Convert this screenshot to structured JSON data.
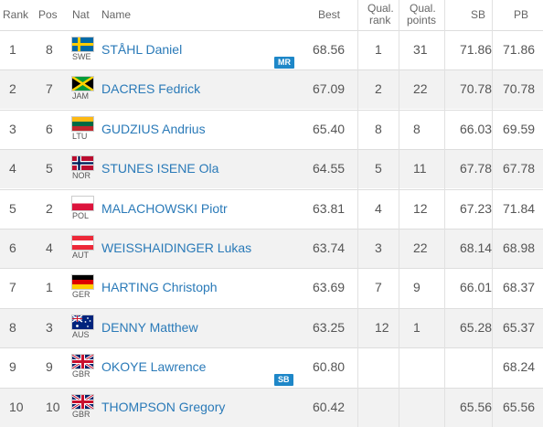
{
  "headers": {
    "rank": "Rank",
    "pos": "Pos",
    "nat": "Nat",
    "name": "Name",
    "best": "Best",
    "qual_rank_1": "Qual.",
    "qual_rank_2": "rank",
    "qual_points_1": "Qual.",
    "qual_points_2": "points",
    "sb": "SB",
    "pb": "PB"
  },
  "rows": [
    {
      "rank": "1",
      "pos": "8",
      "nat": "SWE",
      "flag": "swe-flag-icon",
      "name": "STÅHL Daniel",
      "best": "68.56",
      "qrank": "1",
      "qpts": "31",
      "sb": "71.86",
      "pb": "71.86",
      "badge": "MR"
    },
    {
      "rank": "2",
      "pos": "7",
      "nat": "JAM",
      "flag": "jam-flag-icon",
      "name": "DACRES Fedrick",
      "best": "67.09",
      "qrank": "2",
      "qpts": "22",
      "sb": "70.78",
      "pb": "70.78",
      "badge": ""
    },
    {
      "rank": "3",
      "pos": "6",
      "nat": "LTU",
      "flag": "ltu-flag-icon",
      "name": "GUDZIUS Andrius",
      "best": "65.40",
      "qrank": "8",
      "qpts": "8",
      "sb": "66.03",
      "pb": "69.59",
      "badge": ""
    },
    {
      "rank": "4",
      "pos": "5",
      "nat": "NOR",
      "flag": "nor-flag-icon",
      "name": "STUNES ISENE Ola",
      "best": "64.55",
      "qrank": "5",
      "qpts": "11",
      "sb": "67.78",
      "pb": "67.78",
      "badge": ""
    },
    {
      "rank": "5",
      "pos": "2",
      "nat": "POL",
      "flag": "pol-flag-icon",
      "name": "MALACHOWSKI Piotr",
      "best": "63.81",
      "qrank": "4",
      "qpts": "12",
      "sb": "67.23",
      "pb": "71.84",
      "badge": ""
    },
    {
      "rank": "6",
      "pos": "4",
      "nat": "AUT",
      "flag": "aut-flag-icon",
      "name": "WEISSHAIDINGER Lukas",
      "best": "63.74",
      "qrank": "3",
      "qpts": "22",
      "sb": "68.14",
      "pb": "68.98",
      "badge": ""
    },
    {
      "rank": "7",
      "pos": "1",
      "nat": "GER",
      "flag": "ger-flag-icon",
      "name": "HARTING Christoph",
      "best": "63.69",
      "qrank": "7",
      "qpts": "9",
      "sb": "66.01",
      "pb": "68.37",
      "badge": ""
    },
    {
      "rank": "8",
      "pos": "3",
      "nat": "AUS",
      "flag": "aus-flag-icon",
      "name": "DENNY Matthew",
      "best": "63.25",
      "qrank": "12",
      "qpts": "1",
      "sb": "65.28",
      "pb": "65.37",
      "badge": ""
    },
    {
      "rank": "9",
      "pos": "9",
      "nat": "GBR",
      "flag": "gbr-flag-icon",
      "name": "OKOYE Lawrence",
      "best": "60.80",
      "qrank": "",
      "qpts": "",
      "sb": "",
      "pb": "68.24",
      "badge": "SB"
    },
    {
      "rank": "10",
      "pos": "10",
      "nat": "GBR",
      "flag": "gbr-flag-icon",
      "name": "THOMPSON Gregory",
      "best": "60.42",
      "qrank": "",
      "qpts": "",
      "sb": "65.56",
      "pb": "65.56",
      "badge": ""
    }
  ],
  "colors": {
    "link": "#2a7ab8",
    "badge_bg": "#1e87c8",
    "row_alt": "#f2f2f2"
  }
}
